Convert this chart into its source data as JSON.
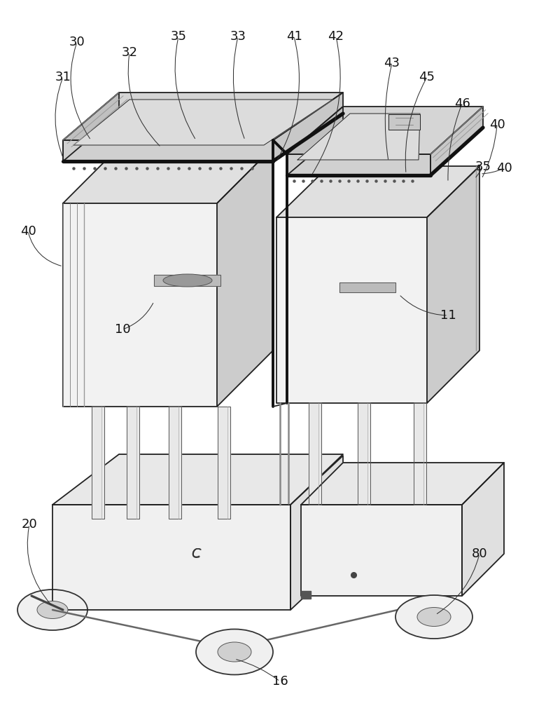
{
  "bg_color": "#ffffff",
  "line_color": "#222222",
  "fig_width": 7.7,
  "fig_height": 10.0,
  "lw_main": 1.3,
  "lw_thick": 2.8,
  "lw_thin": 0.7,
  "lw_label": 0.75,
  "label_fs": 13,
  "fill_light": "#f2f2f2",
  "fill_mid": "#e0e0e0",
  "fill_dark": "#cccccc",
  "fill_darker": "#b8b8b8",
  "fill_black": "#111111",
  "fill_top": "#d8d8d8",
  "fill_side": "#e8e8e8"
}
